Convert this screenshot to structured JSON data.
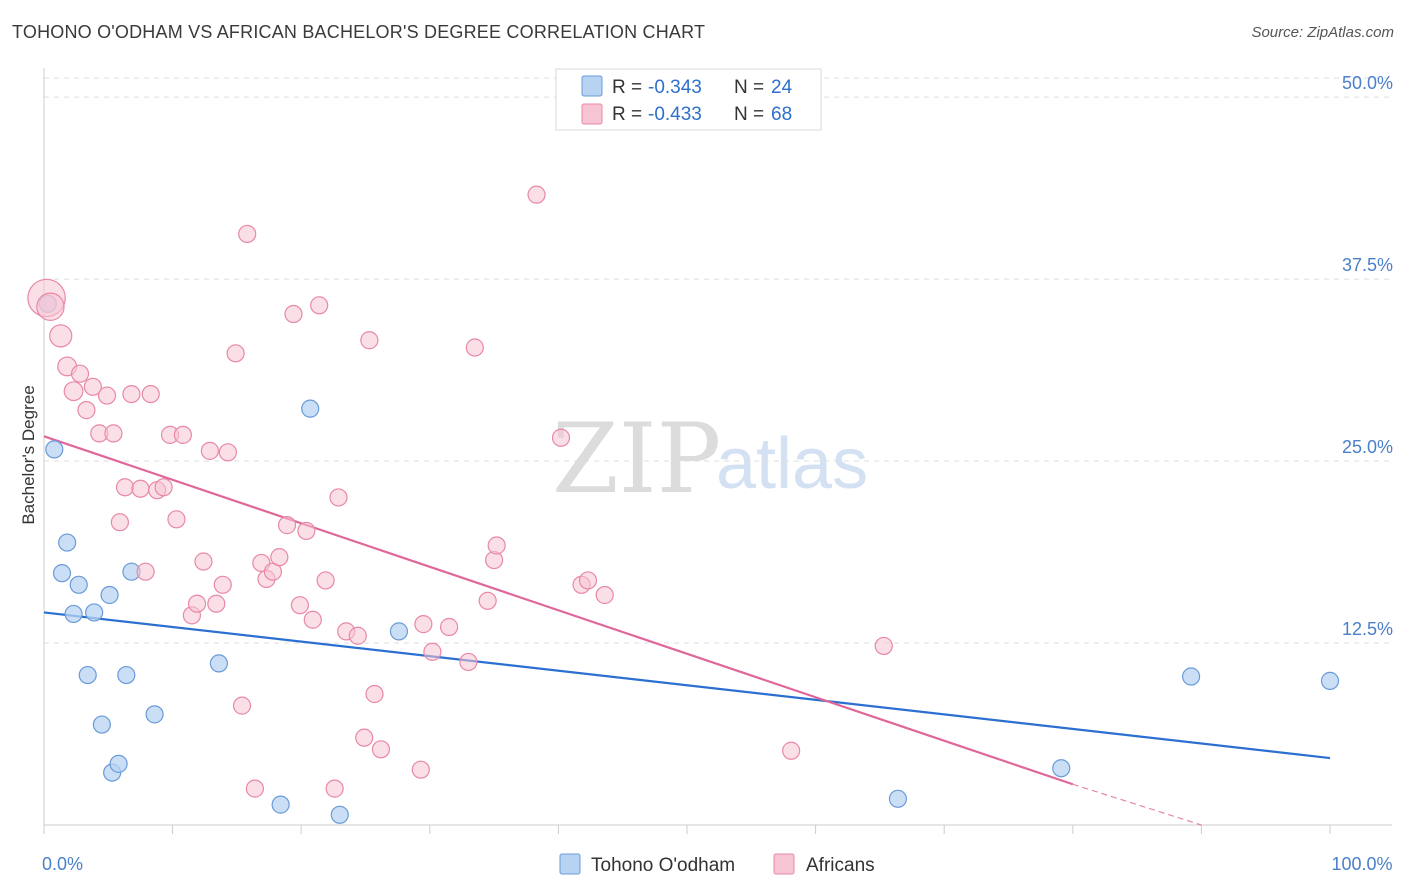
{
  "title": "TOHONO O'ODHAM VS AFRICAN BACHELOR'S DEGREE CORRELATION CHART",
  "source": "Source: ZipAtlas.com",
  "watermark": {
    "zip": "ZIP",
    "atlas": "atlas"
  },
  "colors": {
    "blue_fill": "#b8d3f2",
    "blue_stroke": "#6a9bd8",
    "blue_line": "#2b6fd1",
    "pink_fill": "#f7c4d3",
    "pink_stroke": "#e888a6",
    "pink_line": "#e0679a",
    "grid": "#dddddd",
    "axis_text": "#4a7fc9"
  },
  "legend": {
    "r_label": "R =",
    "n_label": "N =",
    "items": [
      {
        "series": "Tohono O'odham",
        "r": "-0.343",
        "n": "24"
      },
      {
        "series": "Africans",
        "r": "-0.433",
        "n": "68"
      }
    ]
  },
  "chart_data": {
    "type": "scatter",
    "title": "TOHONO O'ODHAM VS AFRICAN BACHELOR'S DEGREE CORRELATION CHART",
    "xlabel": "",
    "ylabel": "Bachelor's Degree",
    "xlim": [
      0,
      100
    ],
    "ylim": [
      0,
      52
    ],
    "x_tick_labels": [
      {
        "value": 0,
        "label": "0.0%"
      },
      {
        "value": 100,
        "label": "100.0%"
      }
    ],
    "y_ticks": [
      {
        "value": 12.5,
        "label": "12.5%"
      },
      {
        "value": 25,
        "label": "25.0%"
      },
      {
        "value": 37.5,
        "label": "37.5%"
      },
      {
        "value": 50,
        "label": "50.0%"
      }
    ],
    "series": [
      {
        "name": "Tohono O'odham",
        "color": "blue",
        "points": [
          {
            "x": 0.3,
            "y": 35.8,
            "s": 1
          },
          {
            "x": 0.8,
            "y": 25.8,
            "s": 1
          },
          {
            "x": 1.4,
            "y": 17.3,
            "s": 1
          },
          {
            "x": 1.8,
            "y": 19.4,
            "s": 1
          },
          {
            "x": 2.3,
            "y": 14.5,
            "s": 1
          },
          {
            "x": 2.7,
            "y": 16.5,
            "s": 1
          },
          {
            "x": 3.4,
            "y": 10.3,
            "s": 1
          },
          {
            "x": 3.9,
            "y": 14.6,
            "s": 1
          },
          {
            "x": 4.5,
            "y": 6.9,
            "s": 1
          },
          {
            "x": 5.1,
            "y": 15.8,
            "s": 1
          },
          {
            "x": 5.3,
            "y": 3.6,
            "s": 1
          },
          {
            "x": 5.8,
            "y": 4.2,
            "s": 1
          },
          {
            "x": 6.4,
            "y": 10.3,
            "s": 1
          },
          {
            "x": 6.8,
            "y": 17.4,
            "s": 1
          },
          {
            "x": 8.6,
            "y": 7.6,
            "s": 1
          },
          {
            "x": 13.6,
            "y": 11.1,
            "s": 1
          },
          {
            "x": 18.4,
            "y": 1.4,
            "s": 1
          },
          {
            "x": 20.7,
            "y": 28.6,
            "s": 1
          },
          {
            "x": 23.0,
            "y": 0.7,
            "s": 1
          },
          {
            "x": 27.6,
            "y": 13.3,
            "s": 1
          },
          {
            "x": 66.4,
            "y": 1.8,
            "s": 1
          },
          {
            "x": 79.1,
            "y": 3.9,
            "s": 1
          },
          {
            "x": 89.2,
            "y": 10.2,
            "s": 1
          },
          {
            "x": 100,
            "y": 9.9,
            "s": 1
          }
        ]
      },
      {
        "name": "Africans",
        "color": "pink",
        "points": [
          {
            "x": 0.2,
            "y": 36.2,
            "s": 2.2
          },
          {
            "x": 0.5,
            "y": 35.6,
            "s": 1.6
          },
          {
            "x": 1.3,
            "y": 33.6,
            "s": 1.3
          },
          {
            "x": 1.8,
            "y": 31.5,
            "s": 1.1
          },
          {
            "x": 2.3,
            "y": 29.8,
            "s": 1.1
          },
          {
            "x": 2.8,
            "y": 31.0,
            "s": 1
          },
          {
            "x": 3.3,
            "y": 28.5,
            "s": 1
          },
          {
            "x": 3.8,
            "y": 30.1,
            "s": 1
          },
          {
            "x": 4.3,
            "y": 26.9,
            "s": 1
          },
          {
            "x": 4.9,
            "y": 29.5,
            "s": 1
          },
          {
            "x": 5.4,
            "y": 26.9,
            "s": 1
          },
          {
            "x": 5.9,
            "y": 20.8,
            "s": 1
          },
          {
            "x": 6.3,
            "y": 23.2,
            "s": 1
          },
          {
            "x": 6.8,
            "y": 29.6,
            "s": 1
          },
          {
            "x": 7.5,
            "y": 23.1,
            "s": 1
          },
          {
            "x": 7.9,
            "y": 17.4,
            "s": 1
          },
          {
            "x": 8.3,
            "y": 29.6,
            "s": 1
          },
          {
            "x": 8.8,
            "y": 23.0,
            "s": 1
          },
          {
            "x": 9.3,
            "y": 23.2,
            "s": 1
          },
          {
            "x": 9.8,
            "y": 26.8,
            "s": 1
          },
          {
            "x": 10.3,
            "y": 21.0,
            "s": 1
          },
          {
            "x": 10.8,
            "y": 26.8,
            "s": 1
          },
          {
            "x": 11.5,
            "y": 14.4,
            "s": 1
          },
          {
            "x": 11.9,
            "y": 15.2,
            "s": 1
          },
          {
            "x": 12.4,
            "y": 18.1,
            "s": 1
          },
          {
            "x": 12.9,
            "y": 25.7,
            "s": 1
          },
          {
            "x": 13.4,
            "y": 15.2,
            "s": 1
          },
          {
            "x": 13.9,
            "y": 16.5,
            "s": 1
          },
          {
            "x": 14.3,
            "y": 25.6,
            "s": 1
          },
          {
            "x": 14.9,
            "y": 32.4,
            "s": 1
          },
          {
            "x": 15.4,
            "y": 8.2,
            "s": 1
          },
          {
            "x": 15.8,
            "y": 40.6,
            "s": 1
          },
          {
            "x": 16.4,
            "y": 2.5,
            "s": 1
          },
          {
            "x": 16.9,
            "y": 18.0,
            "s": 1
          },
          {
            "x": 17.3,
            "y": 16.9,
            "s": 1
          },
          {
            "x": 17.8,
            "y": 17.4,
            "s": 1
          },
          {
            "x": 18.3,
            "y": 18.4,
            "s": 1
          },
          {
            "x": 18.9,
            "y": 20.6,
            "s": 1
          },
          {
            "x": 19.4,
            "y": 35.1,
            "s": 1
          },
          {
            "x": 19.9,
            "y": 15.1,
            "s": 1
          },
          {
            "x": 20.4,
            "y": 20.2,
            "s": 1
          },
          {
            "x": 20.9,
            "y": 14.1,
            "s": 1
          },
          {
            "x": 21.4,
            "y": 35.7,
            "s": 1
          },
          {
            "x": 21.9,
            "y": 16.8,
            "s": 1
          },
          {
            "x": 22.6,
            "y": 2.5,
            "s": 1
          },
          {
            "x": 22.9,
            "y": 22.5,
            "s": 1
          },
          {
            "x": 23.5,
            "y": 13.3,
            "s": 1
          },
          {
            "x": 24.4,
            "y": 13.0,
            "s": 1
          },
          {
            "x": 24.9,
            "y": 6.0,
            "s": 1
          },
          {
            "x": 25.3,
            "y": 33.3,
            "s": 1
          },
          {
            "x": 25.7,
            "y": 9.0,
            "s": 1
          },
          {
            "x": 26.2,
            "y": 5.2,
            "s": 1
          },
          {
            "x": 29.3,
            "y": 3.8,
            "s": 1
          },
          {
            "x": 29.5,
            "y": 13.8,
            "s": 1
          },
          {
            "x": 30.2,
            "y": 11.9,
            "s": 1
          },
          {
            "x": 31.5,
            "y": 13.6,
            "s": 1
          },
          {
            "x": 33.0,
            "y": 11.2,
            "s": 1
          },
          {
            "x": 33.5,
            "y": 32.8,
            "s": 1
          },
          {
            "x": 34.5,
            "y": 15.4,
            "s": 1
          },
          {
            "x": 35.0,
            "y": 18.2,
            "s": 1
          },
          {
            "x": 35.2,
            "y": 19.2,
            "s": 1
          },
          {
            "x": 38.3,
            "y": 43.3,
            "s": 1
          },
          {
            "x": 40.2,
            "y": 26.6,
            "s": 1
          },
          {
            "x": 41.8,
            "y": 16.5,
            "s": 1
          },
          {
            "x": 42.3,
            "y": 16.8,
            "s": 1
          },
          {
            "x": 43.6,
            "y": 15.8,
            "s": 1
          },
          {
            "x": 58.1,
            "y": 5.1,
            "s": 1
          },
          {
            "x": 65.3,
            "y": 12.3,
            "s": 1
          }
        ]
      }
    ],
    "trend_lines": [
      {
        "series": "Tohono O'odham",
        "x1": 0,
        "y1": 14.6,
        "x2": 100,
        "y2": 4.6,
        "dashed_to": null
      },
      {
        "series": "Africans",
        "x1": 0,
        "y1": 26.7,
        "x2": 80,
        "y2": 2.8,
        "dashed_to": {
          "x": 90,
          "y": 0
        }
      }
    ]
  }
}
